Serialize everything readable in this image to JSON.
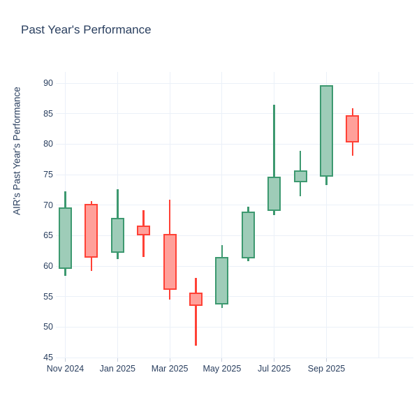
{
  "title": "Past Year's Performance",
  "colors": {
    "increasing_line": "#3D9970",
    "increasing_fill": "#9ECCB8",
    "decreasing_line": "#FF4136",
    "decreasing_fill": "#FFA09A",
    "text": "#2a3f5f",
    "grid": "#EBF0F8",
    "tick": "#c8d0de",
    "background": "#ffffff"
  },
  "chart_data": {
    "type": "candlestick",
    "title": "Past Year's Performance",
    "xlabel": "",
    "ylabel": "AIR's Past Year's Performance",
    "ylim": [
      44.9,
      91.8
    ],
    "y_ticks": [
      45,
      50,
      55,
      60,
      65,
      70,
      75,
      80,
      85,
      90
    ],
    "x_tick_labels": [
      "Nov 2024",
      "Jan 2025",
      "Mar 2025",
      "May 2025",
      "Jul 2025",
      "Sep 2025"
    ],
    "grid": "on",
    "legend": "none",
    "candles": [
      {
        "month": "Nov 2024",
        "open": 59.5,
        "high": 72.3,
        "low": 58.4,
        "close": 69.6,
        "direction": "up"
      },
      {
        "month": "Dec 2024",
        "open": 70.2,
        "high": 70.6,
        "low": 59.2,
        "close": 61.4,
        "direction": "down"
      },
      {
        "month": "Jan 2025",
        "open": 62.2,
        "high": 72.6,
        "low": 61.1,
        "close": 67.9,
        "direction": "up"
      },
      {
        "month": "Feb 2025",
        "open": 66.6,
        "high": 69.2,
        "low": 61.5,
        "close": 65.0,
        "direction": "down"
      },
      {
        "month": "Mar 2025",
        "open": 65.3,
        "high": 70.9,
        "low": 54.5,
        "close": 56.1,
        "direction": "down"
      },
      {
        "month": "Apr 2025",
        "open": 55.7,
        "high": 58.0,
        "low": 47.0,
        "close": 53.5,
        "direction": "down"
      },
      {
        "month": "May 2025",
        "open": 53.7,
        "high": 63.4,
        "low": 53.1,
        "close": 61.5,
        "direction": "up"
      },
      {
        "month": "Jun 2025",
        "open": 61.3,
        "high": 69.7,
        "low": 60.8,
        "close": 68.9,
        "direction": "up"
      },
      {
        "month": "Jul 2025",
        "open": 69.0,
        "high": 86.4,
        "low": 68.4,
        "close": 74.7,
        "direction": "up"
      },
      {
        "month": "Aug 2025",
        "open": 73.7,
        "high": 78.9,
        "low": 71.5,
        "close": 75.7,
        "direction": "up"
      },
      {
        "month": "Sep 2025",
        "open": 74.7,
        "high": 89.7,
        "low": 73.3,
        "close": 89.7,
        "direction": "up"
      },
      {
        "month": "Oct 2025",
        "open": 84.7,
        "high": 85.9,
        "low": 78.1,
        "close": 80.3,
        "direction": "down"
      }
    ]
  }
}
